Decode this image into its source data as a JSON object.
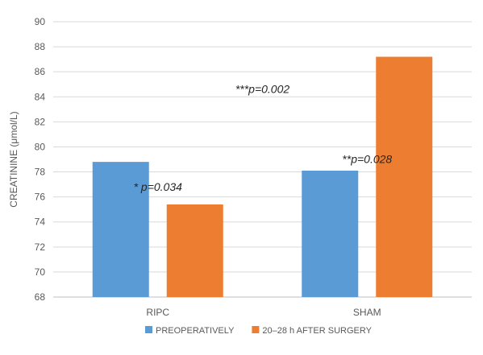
{
  "chart_data": {
    "type": "bar",
    "title": "",
    "xlabel": "",
    "ylabel": "CREATININE   (μmol/L)",
    "ylim": [
      68,
      90
    ],
    "yticks": [
      68,
      70,
      72,
      74,
      76,
      78,
      80,
      82,
      84,
      86,
      88,
      90
    ],
    "grid": true,
    "legend_position": "bottom",
    "categories": [
      "RIPC",
      "SHAM"
    ],
    "series": [
      {
        "name": "PREOPERATIVELY",
        "color": "#5b9bd5",
        "values": [
          78.8,
          78.1
        ]
      },
      {
        "name": "20–28 h AFTER SURGERY",
        "color": "#ed7d31",
        "values": [
          75.4,
          87.2
        ]
      }
    ],
    "annotations": [
      {
        "text": "* p=0.034",
        "category": "RIPC",
        "y": 76.5
      },
      {
        "text": "**p=0.028",
        "category": "SHAM",
        "y": 78.7
      },
      {
        "text": "***p=0.002",
        "category": "between",
        "y": 84.3
      }
    ]
  }
}
